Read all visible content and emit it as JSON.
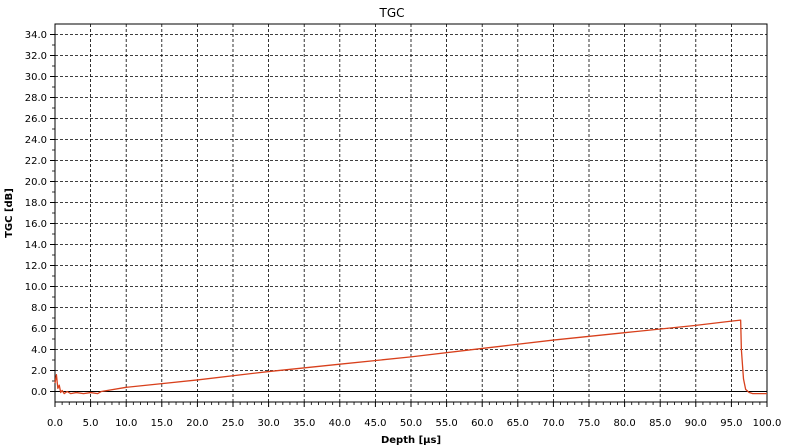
{
  "chart_data": {
    "type": "line",
    "title": "TGC",
    "xlabel": "Depth [µs]",
    "ylabel": "TGC [dB]",
    "xlim": [
      0,
      100
    ],
    "ylim": [
      -1,
      35
    ],
    "x_ticks": [
      "0.0",
      "5.0",
      "10.0",
      "15.0",
      "20.0",
      "25.0",
      "30.0",
      "35.0",
      "40.0",
      "45.0",
      "50.0",
      "55.0",
      "60.0",
      "65.0",
      "70.0",
      "75.0",
      "80.0",
      "85.0",
      "90.0",
      "95.0",
      "100.0"
    ],
    "y_ticks": [
      "0.0",
      "2.0",
      "4.0",
      "6.0",
      "8.0",
      "10.0",
      "12.0",
      "14.0",
      "16.0",
      "18.0",
      "20.0",
      "22.0",
      "24.0",
      "26.0",
      "28.0",
      "30.0",
      "32.0",
      "34.0"
    ],
    "grid": true,
    "series": [
      {
        "color": "#d8401c",
        "x": [
          0.0,
          0.2,
          0.4,
          0.6,
          0.8,
          1.0,
          1.3,
          1.7,
          2.2,
          3.0,
          4.0,
          5.0,
          6.0,
          6.5,
          10.0,
          20.0,
          30.0,
          40.0,
          50.0,
          60.0,
          70.0,
          80.0,
          90.0,
          95.0,
          96.3,
          96.4,
          96.7,
          97.0,
          97.5,
          98.0,
          100.0
        ],
        "y": [
          0.8,
          1.6,
          0.3,
          0.6,
          -0.1,
          0.1,
          -0.2,
          0.0,
          -0.2,
          -0.1,
          -0.2,
          -0.1,
          -0.2,
          0.0,
          0.4,
          1.1,
          1.9,
          2.6,
          3.3,
          4.1,
          4.9,
          5.6,
          6.3,
          6.7,
          6.8,
          4.0,
          1.2,
          0.2,
          -0.1,
          -0.2,
          -0.2
        ]
      }
    ],
    "reference_lines": [
      {
        "y": 0,
        "color": "#000000"
      }
    ],
    "colors": {
      "grid": "#000000",
      "frame": "#000000",
      "series": "#d8401c"
    }
  }
}
